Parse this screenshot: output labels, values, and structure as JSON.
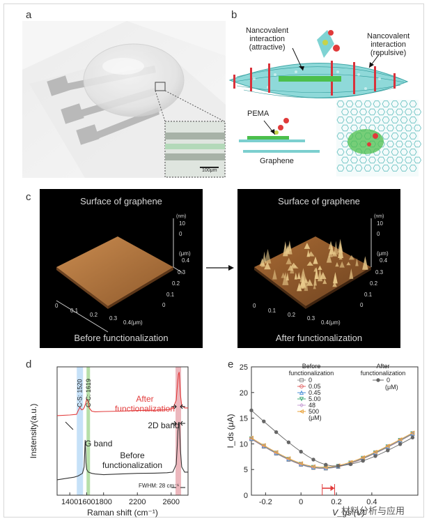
{
  "panel_labels": {
    "a": "a",
    "b": "b",
    "c": "c",
    "d": "d",
    "e": "e"
  },
  "panel_a": {
    "scale_bar": "100μm"
  },
  "panel_b": {
    "attractive": [
      "Nancovalent",
      "interaction",
      "(attractive)"
    ],
    "repulsive": [
      "Nancovalent",
      "interaction",
      "(repulsive)"
    ],
    "pema": "PEMA",
    "graphene": "Graphene"
  },
  "panel_c": {
    "left": {
      "title": "Surface of graphene",
      "caption": "Before functionalization"
    },
    "right": {
      "title": "Surface of graphene",
      "caption": "After functionalization"
    },
    "z_unit": "(nm)",
    "z_top": "10",
    "z_zero": "0",
    "y_unit": "(μm)",
    "y_ticks": [
      "0.4",
      "0.3",
      "0.2",
      "0.1",
      "0"
    ],
    "x_ticks": [
      "0",
      "0.1",
      "0.2",
      "0.3",
      "0.4(μm)"
    ]
  },
  "chart_data": [
    {
      "type": "line",
      "panel": "d",
      "title": "",
      "xlabel": "Raman shift (cm⁻¹)",
      "ylabel": "Instensity(a.u.)",
      "xlim": [
        1250,
        2800
      ],
      "x_ticks": [
        "1400",
        "1600",
        "1800",
        "2200",
        "2600"
      ],
      "series": [
        {
          "name": "After functionalization",
          "color": "#e23c3c",
          "x": [
            1250,
            1400,
            1480,
            1500,
            1520,
            1540,
            1560,
            1575,
            1590,
            1600,
            1610,
            1619,
            1630,
            1660,
            1700,
            1800,
            2000,
            2200,
            2400,
            2550,
            2620,
            2660,
            2675,
            2685,
            2695,
            2700,
            2710,
            2725,
            2760,
            2800
          ],
          "y": [
            0.62,
            0.625,
            0.63,
            0.66,
            0.685,
            0.665,
            0.67,
            0.69,
            0.72,
            0.75,
            0.74,
            0.72,
            0.68,
            0.655,
            0.65,
            0.652,
            0.655,
            0.66,
            0.662,
            0.665,
            0.675,
            0.74,
            0.86,
            0.94,
            0.96,
            0.9,
            0.78,
            0.7,
            0.68,
            0.68
          ]
        },
        {
          "name": "Before functionalization",
          "color": "#333333",
          "x": [
            1250,
            1350,
            1450,
            1500,
            1550,
            1570,
            1578,
            1582,
            1587,
            1592,
            1600,
            1620,
            1660,
            1700,
            1800,
            2000,
            2200,
            2400,
            2550,
            2620,
            2660,
            2672,
            2680,
            2690,
            2695,
            2700,
            2710,
            2725,
            2760,
            2800
          ],
          "y": [
            0.12,
            0.13,
            0.14,
            0.15,
            0.17,
            0.22,
            0.36,
            0.43,
            0.36,
            0.25,
            0.2,
            0.18,
            0.17,
            0.165,
            0.16,
            0.165,
            0.17,
            0.172,
            0.175,
            0.18,
            0.24,
            0.38,
            0.5,
            0.56,
            0.57,
            0.52,
            0.35,
            0.22,
            0.18,
            0.18
          ]
        }
      ],
      "highlight_bands": [
        {
          "label": "C-S: 1520",
          "center": 1520,
          "color": "#bcdcf7"
        },
        {
          "label": "C-C: 1619",
          "center": 1619,
          "color": "#a9d99a"
        },
        {
          "label": "2D",
          "center": 2685,
          "color": "#e9aab2"
        }
      ],
      "annotations": {
        "after": [
          "After",
          "functionalization"
        ],
        "before": [
          "Before",
          "functionalization"
        ],
        "g_band": "G band",
        "d2_band": "2D band",
        "fwhm": "FWHM: 28 cm⁻¹"
      }
    },
    {
      "type": "line",
      "panel": "e",
      "xlabel": "V_gs (V)",
      "ylabel": "I_ds (μA)",
      "xlim": [
        -0.28,
        0.66
      ],
      "ylim": [
        0,
        25
      ],
      "x_ticks": [
        -0.2,
        0,
        0.2,
        0.4
      ],
      "y_ticks": [
        0,
        5,
        10,
        15,
        20,
        25
      ],
      "legend_before_title": [
        "Before",
        "functionalization"
      ],
      "legend_after_title": [
        "After",
        "functionalization"
      ],
      "legend_unit": "(μM)",
      "series": [
        {
          "name": "0",
          "group": "before",
          "color": "#8a8a8a",
          "marker": "square",
          "shift": 0.0
        },
        {
          "name": "0.05",
          "group": "before",
          "color": "#e06060",
          "marker": "circle",
          "shift": 0.005
        },
        {
          "name": "0.45",
          "group": "before",
          "color": "#4a8fd6",
          "marker": "triangle",
          "shift": 0.01
        },
        {
          "name": "5.00",
          "group": "before",
          "color": "#3aa874",
          "marker": "triangle-down",
          "shift": 0.015
        },
        {
          "name": "48",
          "group": "before",
          "color": "#c9a2d6",
          "marker": "diamond",
          "shift": 0.02
        },
        {
          "name": "500",
          "group": "before",
          "color": "#e8a23a",
          "marker": "triangle-left",
          "shift": 0.025
        },
        {
          "name": "0",
          "group": "after",
          "color": "#666666",
          "marker": "circle-filled",
          "shift": 0.0
        }
      ],
      "before_curve": {
        "vdirac": 0.12,
        "imin": 5.2,
        "left_slope": 24,
        "right_slope": 21
      },
      "after_curve": {
        "vdirac": 0.19,
        "imin": 5.7,
        "left_slope": 33,
        "right_slope": 22
      }
    }
  ],
  "watermark": "材料分析与应用"
}
